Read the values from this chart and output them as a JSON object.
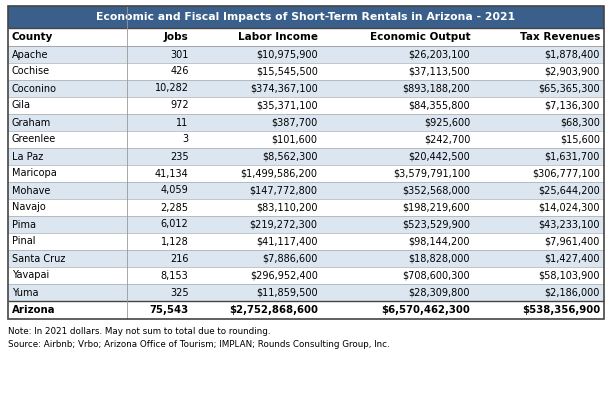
{
  "title": "Economic and Fiscal Impacts of Short-Term Rentals in Arizona - 2021",
  "columns": [
    "County",
    "Jobs",
    "Labor Income",
    "Economic Output",
    "Tax Revenues"
  ],
  "rows": [
    [
      "Apache",
      "301",
      "$10,975,900",
      "$26,203,100",
      "$1,878,400"
    ],
    [
      "Cochise",
      "426",
      "$15,545,500",
      "$37,113,500",
      "$2,903,900"
    ],
    [
      "Coconino",
      "10,282",
      "$374,367,100",
      "$893,188,200",
      "$65,365,300"
    ],
    [
      "Gila",
      "972",
      "$35,371,100",
      "$84,355,800",
      "$7,136,300"
    ],
    [
      "Graham",
      "11",
      "$387,700",
      "$925,600",
      "$68,300"
    ],
    [
      "Greenlee",
      "3",
      "$101,600",
      "$242,700",
      "$15,600"
    ],
    [
      "La Paz",
      "235",
      "$8,562,300",
      "$20,442,500",
      "$1,631,700"
    ],
    [
      "Maricopa",
      "41,134",
      "$1,499,586,200",
      "$3,579,791,100",
      "$306,777,100"
    ],
    [
      "Mohave",
      "4,059",
      "$147,772,800",
      "$352,568,000",
      "$25,644,200"
    ],
    [
      "Navajo",
      "2,285",
      "$83,110,200",
      "$198,219,600",
      "$14,024,300"
    ],
    [
      "Pima",
      "6,012",
      "$219,272,300",
      "$523,529,900",
      "$43,233,100"
    ],
    [
      "Pinal",
      "1,128",
      "$41,117,400",
      "$98,144,200",
      "$7,961,400"
    ],
    [
      "Santa Cruz",
      "216",
      "$7,886,600",
      "$18,828,000",
      "$1,427,400"
    ],
    [
      "Yavapai",
      "8,153",
      "$296,952,400",
      "$708,600,300",
      "$58,103,900"
    ],
    [
      "Yuma",
      "325",
      "$11,859,500",
      "$28,309,800",
      "$2,186,000"
    ]
  ],
  "total_row": [
    "Arizona",
    "75,543",
    "$2,752,868,600",
    "$6,570,462,300",
    "$538,356,900"
  ],
  "note_line1": "Note: In 2021 dollars. May not sum to total due to rounding.",
  "note_line2": "Source: Airbnb; Vrbo; Arizona Office of Tourism; IMPLAN; Rounds Consulting Group, Inc.",
  "title_bg_color": "#3a5f8a",
  "title_text_color": "#ffffff",
  "header_bg_color": "#ffffff",
  "header_text_color": "#000000",
  "row_even_color": "#dce6f1",
  "row_odd_color": "#ffffff",
  "total_bg_color": "#ffffff",
  "border_color": "#999999",
  "outer_border_color": "#444444",
  "fig_width": 6.12,
  "fig_height": 4.16,
  "dpi": 100
}
